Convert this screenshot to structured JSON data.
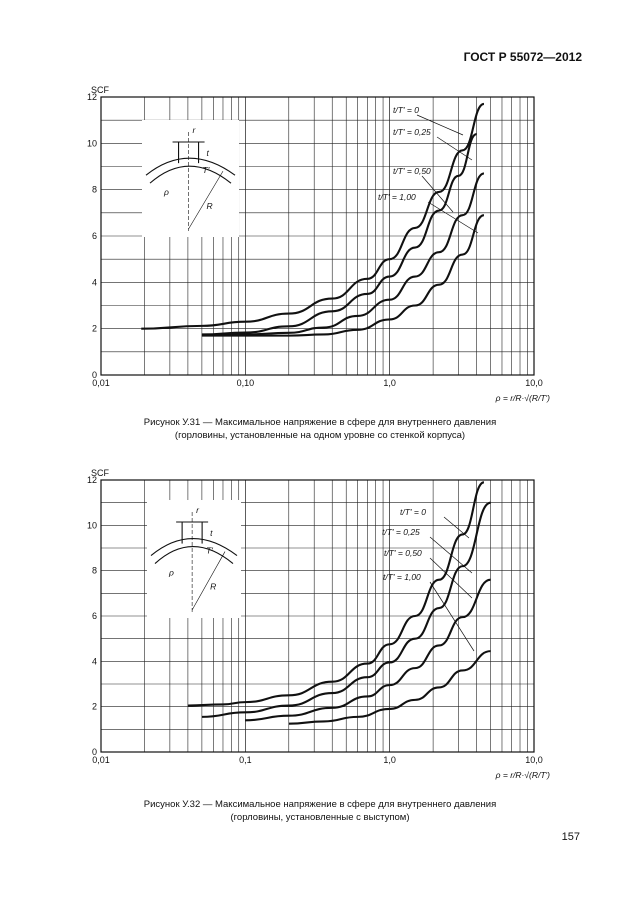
{
  "header": {
    "standard": "ГОСТ Р 55072—2012"
  },
  "page_number": "157",
  "captions": [
    {
      "line1": "Рисунок У.31 — Максимальное напряжение в сфере для внутреннего давления",
      "line2": "(горловины, установленные на одном уровне со стенкой корпуса)"
    },
    {
      "line1": "Рисунок У.32 — Максимальное напряжение в сфере для внутреннего давления",
      "line2": "(горловины, установленные с выступом)"
    }
  ],
  "chart_data": [
    {
      "type": "line",
      "title": "",
      "ylabel": "SCF",
      "xlabel": "ρ = r/R·√(R/T')",
      "xscale": "log",
      "xlim": [
        0.01,
        10
      ],
      "ylim": [
        0,
        12
      ],
      "xticks": [
        "0,01",
        "0,10",
        "1,0",
        "10,0"
      ],
      "yticks": [
        "0",
        "2",
        "4",
        "6",
        "8",
        "10",
        "12"
      ],
      "grid": true,
      "inset_labels": {
        "r": "r",
        "t": "t",
        "T": "T'",
        "rho": "ρ",
        "R": "R"
      },
      "series": [
        {
          "name": "t/T' = 0",
          "x": [
            0.019,
            0.05,
            0.1,
            0.2,
            0.4,
            0.7,
            1.0,
            1.5,
            2.2,
            3.2,
            4.5
          ],
          "y": [
            2.0,
            2.12,
            2.3,
            2.65,
            3.3,
            4.15,
            5.0,
            6.35,
            7.9,
            9.7,
            11.7
          ]
        },
        {
          "name": "t/T' = 0,25",
          "x": [
            0.05,
            0.1,
            0.2,
            0.4,
            0.7,
            1.0,
            1.5,
            2.2,
            3.0,
            4.0
          ],
          "y": [
            1.75,
            1.83,
            2.1,
            2.75,
            3.5,
            4.25,
            5.5,
            7.1,
            8.6,
            10.4
          ]
        },
        {
          "name": "t/T' = 0,50",
          "x": [
            0.05,
            0.1,
            0.2,
            0.35,
            0.6,
            1.0,
            1.5,
            2.2,
            3.2,
            4.5
          ],
          "y": [
            1.72,
            1.75,
            1.82,
            2.05,
            2.55,
            3.25,
            4.25,
            5.3,
            6.9,
            8.7
          ]
        },
        {
          "name": "t/T' = 1,00",
          "x": [
            0.05,
            0.1,
            0.2,
            0.35,
            0.6,
            1.0,
            1.5,
            2.2,
            3.2,
            4.5
          ],
          "y": [
            1.7,
            1.7,
            1.7,
            1.75,
            1.95,
            2.4,
            3.0,
            3.9,
            5.2,
            6.9
          ]
        }
      ]
    },
    {
      "type": "line",
      "title": "",
      "ylabel": "SCF",
      "xlabel": "ρ = r/R·√(R/T')",
      "xscale": "log",
      "xlim": [
        0.01,
        10
      ],
      "ylim": [
        0,
        12
      ],
      "xticks": [
        "0,01",
        "0,1",
        "1,0",
        "10,0"
      ],
      "yticks": [
        "0",
        "2",
        "4",
        "6",
        "8",
        "10",
        "12"
      ],
      "grid": true,
      "inset_labels": {
        "r": "r",
        "t": "t",
        "T": "T'",
        "rho": "ρ",
        "R": "R"
      },
      "series": [
        {
          "name": "t/T' = 0",
          "x": [
            0.04,
            0.07,
            0.1,
            0.2,
            0.4,
            0.7,
            1.0,
            1.5,
            2.2,
            3.2,
            4.5
          ],
          "y": [
            2.05,
            2.1,
            2.2,
            2.5,
            3.1,
            3.9,
            4.75,
            6.0,
            7.6,
            9.6,
            11.9
          ]
        },
        {
          "name": "t/T' = 0,25",
          "x": [
            0.05,
            0.1,
            0.2,
            0.4,
            0.7,
            1.0,
            1.5,
            2.2,
            3.2,
            5.0
          ],
          "y": [
            1.55,
            1.75,
            2.05,
            2.6,
            3.3,
            3.95,
            5.0,
            6.35,
            8.2,
            11.0
          ]
        },
        {
          "name": "t/T' = 0,50",
          "x": [
            0.1,
            0.2,
            0.4,
            0.7,
            1.0,
            1.5,
            2.2,
            3.2,
            5.0
          ],
          "y": [
            1.4,
            1.6,
            1.95,
            2.45,
            2.95,
            3.7,
            4.7,
            5.95,
            7.6
          ]
        },
        {
          "name": "t/T' = 1,00",
          "x": [
            0.2,
            0.35,
            0.6,
            1.0,
            1.5,
            2.2,
            3.2,
            5.0
          ],
          "y": [
            1.25,
            1.35,
            1.55,
            1.9,
            2.3,
            2.85,
            3.6,
            4.45
          ]
        }
      ]
    }
  ]
}
